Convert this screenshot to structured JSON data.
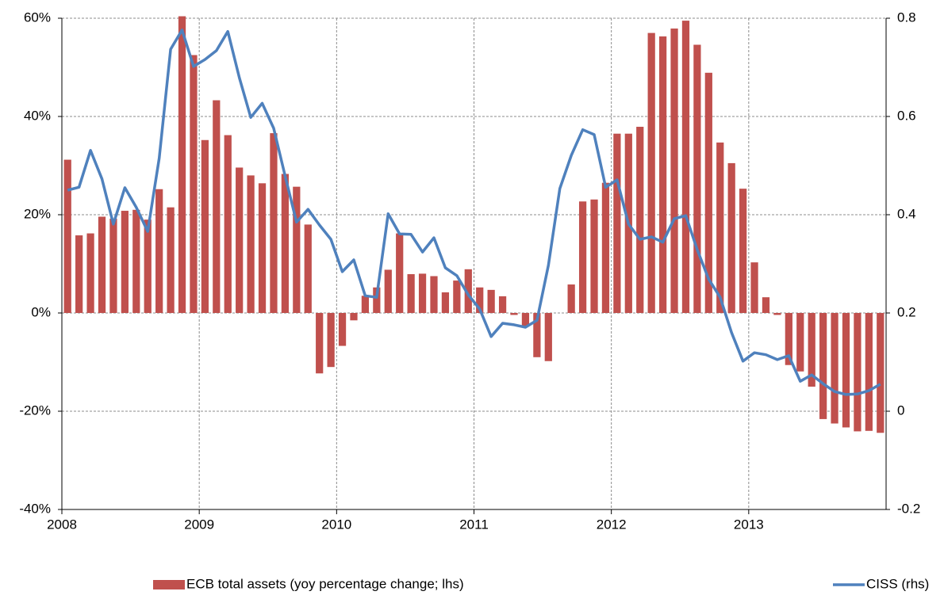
{
  "chart_data": {
    "type": "combo",
    "categories": [
      "2008",
      null,
      null,
      null,
      null,
      null,
      null,
      null,
      null,
      null,
      null,
      null,
      "2009",
      null,
      null,
      null,
      null,
      null,
      null,
      null,
      null,
      null,
      null,
      null,
      "2010",
      null,
      null,
      null,
      null,
      null,
      null,
      null,
      null,
      null,
      null,
      null,
      "2011",
      null,
      null,
      null,
      null,
      null,
      null,
      null,
      null,
      null,
      null,
      null,
      "2012",
      null,
      null,
      null,
      null,
      null,
      null,
      null,
      null,
      null,
      null,
      null,
      "2013",
      null,
      null,
      null,
      null,
      null,
      null,
      null,
      null,
      null,
      null,
      null
    ],
    "series": [
      {
        "name": "ECB total assets (yoy percentage change; lhs)",
        "type": "bar",
        "color": "#c0504d",
        "values": [
          31.2,
          15.8,
          16.2,
          19.6,
          19.2,
          20.8,
          21,
          19,
          25.2,
          21.5,
          60.4,
          52.5,
          35.2,
          43.3,
          36.2,
          29.6,
          28,
          26.4,
          36.6,
          28.3,
          25.7,
          18,
          -12.3,
          -11,
          -6.7,
          -1.5,
          3.5,
          5.2,
          8.8,
          16.2,
          7.9,
          8,
          7.5,
          4.2,
          6.6,
          8.9,
          5.2,
          4.7,
          3.4,
          -0.4,
          -2.8,
          -9,
          -9.8,
          0,
          5.8,
          22.7,
          23.1,
          26.5,
          36.5,
          36.5,
          37.9,
          57,
          56.3,
          57.9,
          59.5,
          54.6,
          48.9,
          34.7,
          30.5,
          25.3,
          10.3,
          3.2,
          -0.4,
          -10.6,
          -11.9,
          -15,
          -21.6,
          -22.5,
          -23.3,
          -24.1,
          -24,
          -24.4
        ]
      },
      {
        "name": "CISS (rhs)",
        "type": "line",
        "axis": "y2",
        "color": "#4f81bd",
        "values": [
          0.45,
          0.456,
          0.531,
          0.473,
          0.381,
          0.455,
          0.415,
          0.366,
          0.515,
          0.737,
          0.776,
          0.702,
          0.716,
          0.734,
          0.773,
          0.679,
          0.598,
          0.627,
          0.576,
          0.479,
          0.385,
          0.411,
          0.379,
          0.35,
          0.284,
          0.308,
          0.235,
          0.232,
          0.402,
          0.361,
          0.36,
          0.324,
          0.353,
          0.292,
          0.276,
          0.237,
          0.208,
          0.152,
          0.179,
          0.176,
          0.171,
          0.185,
          0.297,
          0.453,
          0.521,
          0.573,
          0.563,
          0.456,
          0.471,
          0.381,
          0.35,
          0.355,
          0.344,
          0.392,
          0.398,
          0.329,
          0.269,
          0.232,
          0.16,
          0.102,
          0.119,
          0.115,
          0.105,
          0.113,
          0.061,
          0.074,
          0.056,
          0.04,
          0.034,
          0.035,
          0.042,
          0.055
        ]
      }
    ],
    "ylim": [
      -40,
      60
    ],
    "yticks": [
      {
        "value": -40,
        "label": "-40%"
      },
      {
        "value": -20,
        "label": "-20%"
      },
      {
        "value": 0,
        "label": "0%"
      },
      {
        "value": 20,
        "label": "20%"
      },
      {
        "value": 40,
        "label": "40%"
      },
      {
        "value": 60,
        "label": "60%"
      }
    ],
    "y2lim": [
      -0.2,
      0.8
    ],
    "y2ticks": [
      -0.2,
      0,
      0.2,
      0.4,
      0.6,
      0.8
    ],
    "grid": true,
    "legend": "bottom"
  }
}
